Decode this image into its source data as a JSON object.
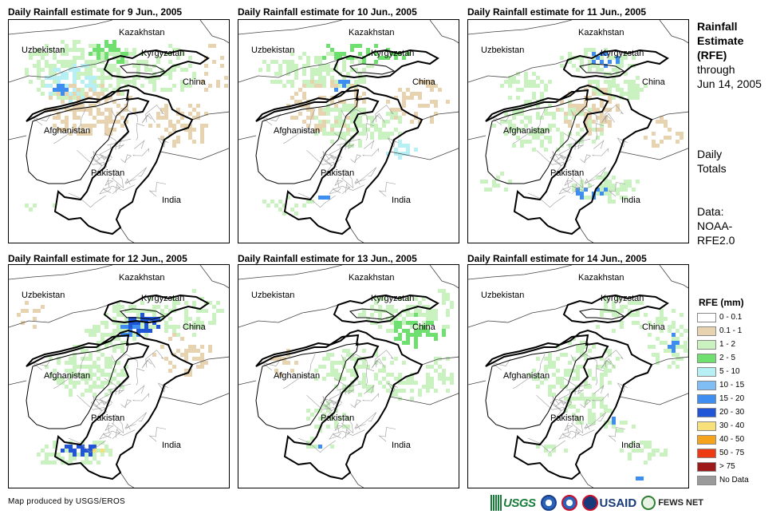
{
  "panels": [
    {
      "title": "Daily Rainfall estimate for 9 Jun., 2005"
    },
    {
      "title": "Daily Rainfall estimate for 10 Jun., 2005"
    },
    {
      "title": "Daily Rainfall estimate for 11 Jun., 2005"
    },
    {
      "title": "Daily Rainfall estimate for 12 Jun., 2005"
    },
    {
      "title": "Daily Rainfall estimate for 13 Jun., 2005"
    },
    {
      "title": "Daily Rainfall estimate for 14 Jun., 2005"
    }
  ],
  "countries": {
    "kazakhstan": "Kazakhstan",
    "uzbekistan": "Uzbekistan",
    "kyrgyzstan": "Kyrgyzstan",
    "china": "China",
    "afghanistan": "Afghanistan",
    "pakistan": "Pakistan",
    "india": "India"
  },
  "side": {
    "title_bold": [
      "Rainfall",
      "Estimate",
      "(RFE)"
    ],
    "title_normal": [
      "through",
      "Jun 14, 2005"
    ],
    "totals": [
      "Daily",
      "Totals"
    ],
    "data": [
      "Data:",
      "NOAA-",
      "RFE2.0"
    ]
  },
  "legend": {
    "title": "RFE (mm)",
    "items": [
      {
        "label": "0 - 0.1",
        "color": "#ffffff"
      },
      {
        "label": "0.1 - 1",
        "color": "#e8d3b0"
      },
      {
        "label": "1 - 2",
        "color": "#c9f2c0"
      },
      {
        "label": "2 - 5",
        "color": "#6fe06f"
      },
      {
        "label": "5 - 10",
        "color": "#b6f0f5"
      },
      {
        "label": "10 - 15",
        "color": "#7fbef5"
      },
      {
        "label": "15 - 20",
        "color": "#3d8ef0"
      },
      {
        "label": "20 - 30",
        "color": "#1f55d6"
      },
      {
        "label": "30 - 40",
        "color": "#f7e07a"
      },
      {
        "label": "40 - 50",
        "color": "#f5a21c"
      },
      {
        "label": "50 - 75",
        "color": "#ee3a10"
      },
      {
        "label": "> 75",
        "color": "#9e1a1a"
      },
      {
        "label": "No Data",
        "color": "#9a9a9a"
      }
    ]
  },
  "footer": {
    "credit": "Map produced by USGS/EROS",
    "logo_usgs": "USGS",
    "logo_usaid": "USAID",
    "logo_fews": "FEWS NET"
  }
}
